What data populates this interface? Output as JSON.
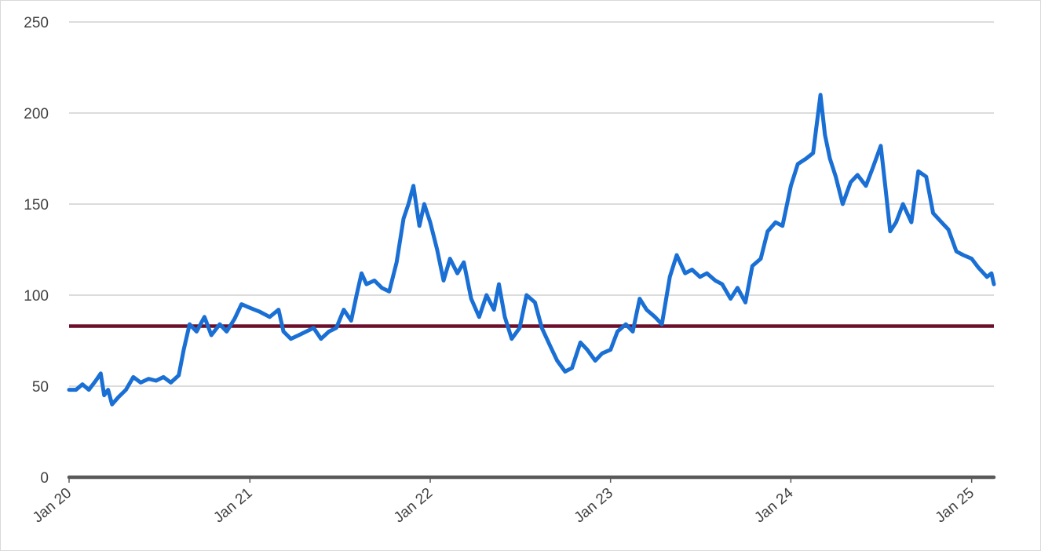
{
  "chart_data": {
    "type": "line",
    "title": "",
    "xlabel": "",
    "ylabel": "",
    "ylim": [
      0,
      250
    ],
    "yticks": [
      0,
      50,
      100,
      150,
      200,
      250
    ],
    "xlim": [
      "2020-01-01",
      "2025-02-15"
    ],
    "xticks": [
      {
        "date": "2020-01-01",
        "label": "Jan 20"
      },
      {
        "date": "2021-01-01",
        "label": "Jan 21"
      },
      {
        "date": "2022-01-01",
        "label": "Jan 22"
      },
      {
        "date": "2023-01-01",
        "label": "Jan 23"
      },
      {
        "date": "2024-01-01",
        "label": "Jan 24"
      },
      {
        "date": "2025-01-01",
        "label": "Jan 25"
      }
    ],
    "grid": true,
    "legend": "none",
    "series": [
      {
        "color": "#1a6fd4",
        "points": [
          [
            "2020-01-01",
            48
          ],
          [
            "2020-01-15",
            48
          ],
          [
            "2020-01-28",
            51
          ],
          [
            "2020-02-10",
            48
          ],
          [
            "2020-02-24",
            53
          ],
          [
            "2020-03-05",
            57
          ],
          [
            "2020-03-12",
            45
          ],
          [
            "2020-03-20",
            48
          ],
          [
            "2020-03-28",
            40
          ],
          [
            "2020-04-10",
            44
          ],
          [
            "2020-04-25",
            48
          ],
          [
            "2020-05-10",
            55
          ],
          [
            "2020-05-25",
            52
          ],
          [
            "2020-06-10",
            54
          ],
          [
            "2020-06-25",
            53
          ],
          [
            "2020-07-10",
            55
          ],
          [
            "2020-07-25",
            52
          ],
          [
            "2020-08-10",
            56
          ],
          [
            "2020-08-20",
            70
          ],
          [
            "2020-09-01",
            84
          ],
          [
            "2020-09-15",
            80
          ],
          [
            "2020-10-01",
            88
          ],
          [
            "2020-10-15",
            78
          ],
          [
            "2020-11-01",
            84
          ],
          [
            "2020-11-15",
            80
          ],
          [
            "2020-12-01",
            87
          ],
          [
            "2020-12-15",
            95
          ],
          [
            "2021-01-01",
            93
          ],
          [
            "2021-01-20",
            91
          ],
          [
            "2021-02-10",
            88
          ],
          [
            "2021-02-28",
            92
          ],
          [
            "2021-03-10",
            80
          ],
          [
            "2021-03-25",
            76
          ],
          [
            "2021-04-10",
            78
          ],
          [
            "2021-04-25",
            80
          ],
          [
            "2021-05-10",
            82
          ],
          [
            "2021-05-25",
            76
          ],
          [
            "2021-06-10",
            80
          ],
          [
            "2021-06-25",
            82
          ],
          [
            "2021-07-10",
            92
          ],
          [
            "2021-07-25",
            86
          ],
          [
            "2021-08-05",
            100
          ],
          [
            "2021-08-15",
            112
          ],
          [
            "2021-08-25",
            106
          ],
          [
            "2021-09-10",
            108
          ],
          [
            "2021-09-25",
            104
          ],
          [
            "2021-10-10",
            102
          ],
          [
            "2021-10-25",
            118
          ],
          [
            "2021-11-08",
            142
          ],
          [
            "2021-11-18",
            150
          ],
          [
            "2021-11-28",
            160
          ],
          [
            "2021-12-10",
            138
          ],
          [
            "2021-12-20",
            150
          ],
          [
            "2022-01-01",
            140
          ],
          [
            "2022-01-15",
            125
          ],
          [
            "2022-01-28",
            108
          ],
          [
            "2022-02-10",
            120
          ],
          [
            "2022-02-25",
            112
          ],
          [
            "2022-03-10",
            118
          ],
          [
            "2022-03-25",
            98
          ],
          [
            "2022-04-10",
            88
          ],
          [
            "2022-04-25",
            100
          ],
          [
            "2022-05-10",
            92
          ],
          [
            "2022-05-20",
            106
          ],
          [
            "2022-06-01",
            88
          ],
          [
            "2022-06-15",
            76
          ],
          [
            "2022-07-01",
            82
          ],
          [
            "2022-07-15",
            100
          ],
          [
            "2022-08-01",
            96
          ],
          [
            "2022-08-15",
            82
          ],
          [
            "2022-09-01",
            72
          ],
          [
            "2022-09-15",
            64
          ],
          [
            "2022-10-01",
            58
          ],
          [
            "2022-10-15",
            60
          ],
          [
            "2022-11-01",
            74
          ],
          [
            "2022-11-15",
            70
          ],
          [
            "2022-12-01",
            64
          ],
          [
            "2022-12-15",
            68
          ],
          [
            "2023-01-01",
            70
          ],
          [
            "2023-01-15",
            80
          ],
          [
            "2023-02-01",
            84
          ],
          [
            "2023-02-15",
            80
          ],
          [
            "2023-03-01",
            98
          ],
          [
            "2023-03-15",
            92
          ],
          [
            "2023-04-01",
            88
          ],
          [
            "2023-04-15",
            84
          ],
          [
            "2023-05-01",
            110
          ],
          [
            "2023-05-15",
            122
          ],
          [
            "2023-06-01",
            112
          ],
          [
            "2023-06-15",
            114
          ],
          [
            "2023-07-01",
            110
          ],
          [
            "2023-07-15",
            112
          ],
          [
            "2023-08-01",
            108
          ],
          [
            "2023-08-15",
            106
          ],
          [
            "2023-09-01",
            98
          ],
          [
            "2023-09-15",
            104
          ],
          [
            "2023-10-01",
            96
          ],
          [
            "2023-10-15",
            116
          ],
          [
            "2023-11-01",
            120
          ],
          [
            "2023-11-15",
            135
          ],
          [
            "2023-12-01",
            140
          ],
          [
            "2023-12-15",
            138
          ],
          [
            "2024-01-01",
            160
          ],
          [
            "2024-01-15",
            172
          ],
          [
            "2024-02-01",
            175
          ],
          [
            "2024-02-15",
            178
          ],
          [
            "2024-03-01",
            210
          ],
          [
            "2024-03-10",
            188
          ],
          [
            "2024-03-20",
            175
          ],
          [
            "2024-04-01",
            165
          ],
          [
            "2024-04-15",
            150
          ],
          [
            "2024-05-01",
            162
          ],
          [
            "2024-05-15",
            166
          ],
          [
            "2024-06-01",
            160
          ],
          [
            "2024-06-15",
            170
          ],
          [
            "2024-07-01",
            182
          ],
          [
            "2024-07-10",
            160
          ],
          [
            "2024-07-20",
            135
          ],
          [
            "2024-08-01",
            140
          ],
          [
            "2024-08-15",
            150
          ],
          [
            "2024-09-01",
            140
          ],
          [
            "2024-09-15",
            168
          ],
          [
            "2024-10-01",
            165
          ],
          [
            "2024-10-15",
            145
          ],
          [
            "2024-11-01",
            140
          ],
          [
            "2024-11-15",
            136
          ],
          [
            "2024-12-01",
            124
          ],
          [
            "2024-12-15",
            122
          ],
          [
            "2025-01-01",
            120
          ],
          [
            "2025-01-15",
            115
          ],
          [
            "2025-02-01",
            110
          ],
          [
            "2025-02-10",
            112
          ],
          [
            "2025-02-15",
            106
          ]
        ]
      }
    ],
    "reference_line": {
      "value": 83,
      "color": "#6b0f2a"
    },
    "baseline_color": "#595959"
  }
}
